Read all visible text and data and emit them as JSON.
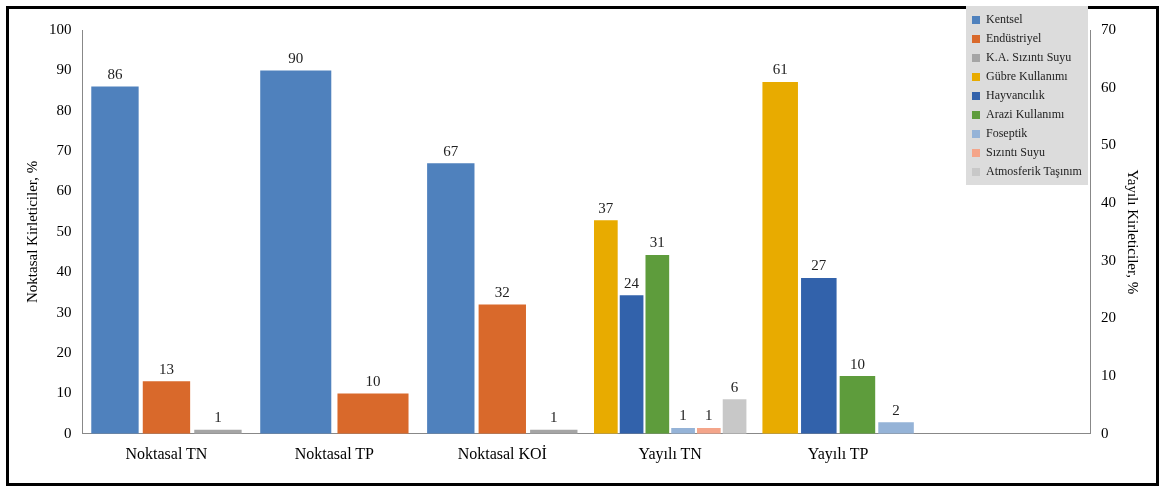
{
  "chart_data": {
    "type": "bar",
    "categories": [
      "Noktasal TN",
      "Noktasal TP",
      "Noktasal KOİ",
      "Yayılı TN",
      "Yayılı TP",
      null
    ],
    "ylabel": "Noktasal Kirleticiler, %",
    "y2label": "Yayılı Kirleticiler, %",
    "ylim": [
      0,
      100
    ],
    "yticks": [
      0,
      10,
      20,
      30,
      40,
      50,
      60,
      70,
      80,
      90,
      100
    ],
    "y2lim": [
      0,
      70
    ],
    "y2ticks": [
      0,
      10,
      20,
      30,
      40,
      50,
      60,
      70
    ],
    "legend": "top right",
    "data_labels": true,
    "series": [
      {
        "name": "Kentsel",
        "color": "#4f81bd",
        "values": [
          86,
          90,
          67,
          null,
          null,
          null
        ]
      },
      {
        "name": "Endüstriyel",
        "color": "#d9692b",
        "values": [
          13,
          10,
          32,
          null,
          null,
          null
        ]
      },
      {
        "name": "K.A. Sızıntı Suyu",
        "color": "#a5a5a5",
        "values": [
          1,
          null,
          1,
          null,
          null,
          null
        ]
      },
      {
        "name": "Gübre Kullanımı",
        "color": "#e8ab00",
        "axis": "y2",
        "values": [
          null,
          null,
          null,
          37,
          61,
          null
        ]
      },
      {
        "name": "Hayvancılık",
        "color": "#3262ab",
        "axis": "y2",
        "values": [
          null,
          null,
          null,
          24,
          27,
          null
        ]
      },
      {
        "name": "Arazi Kullanımı",
        "color": "#5e9c3c",
        "axis": "y2",
        "values": [
          null,
          null,
          null,
          31,
          10,
          null
        ]
      },
      {
        "name": "Foseptik",
        "color": "#95b3d7",
        "axis": "y2",
        "values": [
          null,
          null,
          null,
          1,
          2,
          null
        ]
      },
      {
        "name": "Sızıntı Suyu",
        "color": "#f4a58a",
        "axis": "y2",
        "values": [
          null,
          null,
          null,
          1,
          null,
          null
        ]
      },
      {
        "name": "Atmosferik Taşınım",
        "color": "#c8c8c8",
        "axis": "y2",
        "values": [
          null,
          null,
          null,
          6,
          null,
          null
        ]
      }
    ]
  }
}
